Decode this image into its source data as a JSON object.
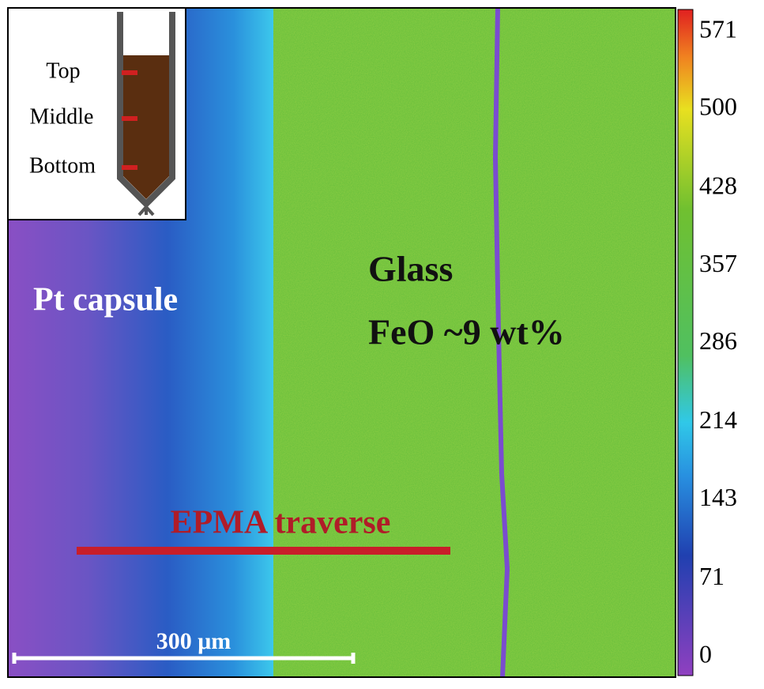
{
  "inset": {
    "labels": [
      "Top",
      "Middle",
      "Bottom"
    ]
  },
  "annotations": {
    "capsule": "Pt capsule",
    "glass": "Glass",
    "feo": "FeO ~9 wt%",
    "traverse": "EPMA traverse"
  },
  "scale_bar": {
    "label": "300 μm"
  },
  "colorbar": {
    "ticks": [
      0,
      71,
      143,
      214,
      286,
      357,
      428,
      500,
      571
    ]
  }
}
